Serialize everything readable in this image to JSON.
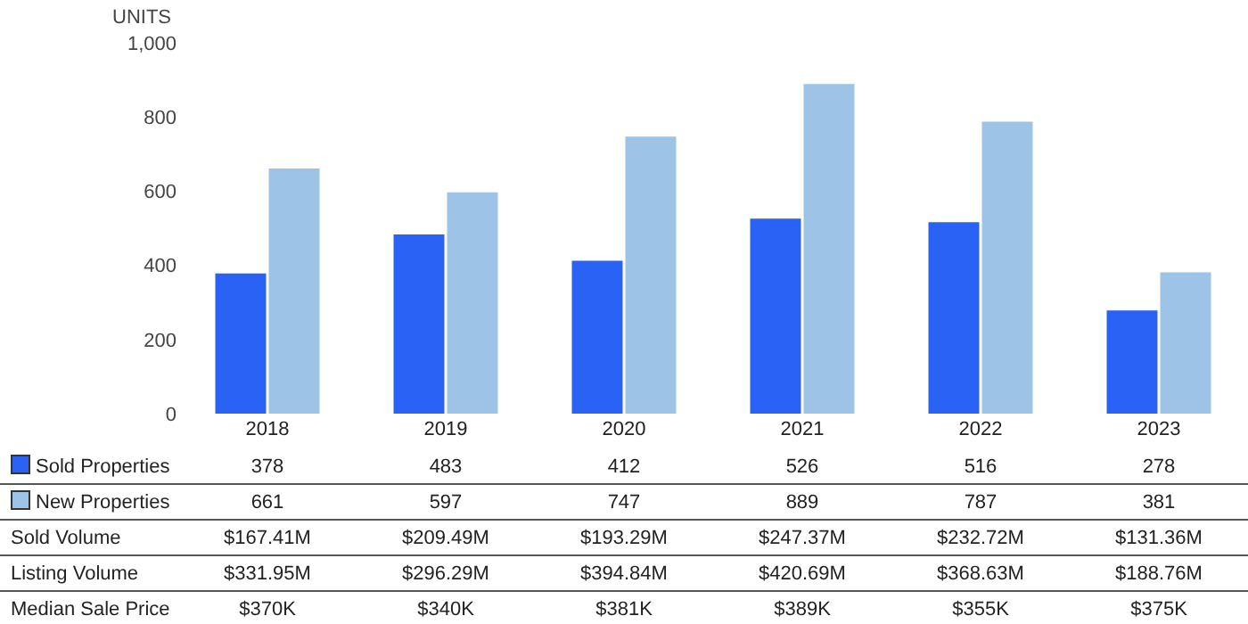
{
  "chart_data": {
    "type": "bar",
    "ylabel": "UNITS",
    "categories": [
      "2018",
      "2019",
      "2020",
      "2021",
      "2022",
      "2023"
    ],
    "series": [
      {
        "name": "Sold Properties",
        "color": "#2962f5",
        "values": [
          378,
          483,
          412,
          526,
          516,
          278
        ]
      },
      {
        "name": "New Properties",
        "color": "#9dc3e6",
        "values": [
          661,
          597,
          747,
          889,
          787,
          381
        ]
      }
    ],
    "ylim": [
      0,
      1000
    ],
    "yticks": [
      0,
      200,
      400,
      600,
      800,
      {
        "value": 1000,
        "label": "1,000"
      }
    ],
    "grid": false,
    "legend": "bottom",
    "data_labels": true,
    "annotations": [
      "Sold Volume",
      "$167.41M",
      "$209.49M",
      "$193.29M",
      "$247.37M",
      "$232.72M",
      "$131.36M",
      "Listing Volume",
      "$331.95M",
      "$296.29M",
      "$394.84M",
      "$420.69M",
      "$368.63M",
      "$188.76M",
      "Median Sale Price",
      "$370K",
      "$340K",
      "$381K",
      "$389K",
      "$355K",
      "$375K"
    ]
  }
}
